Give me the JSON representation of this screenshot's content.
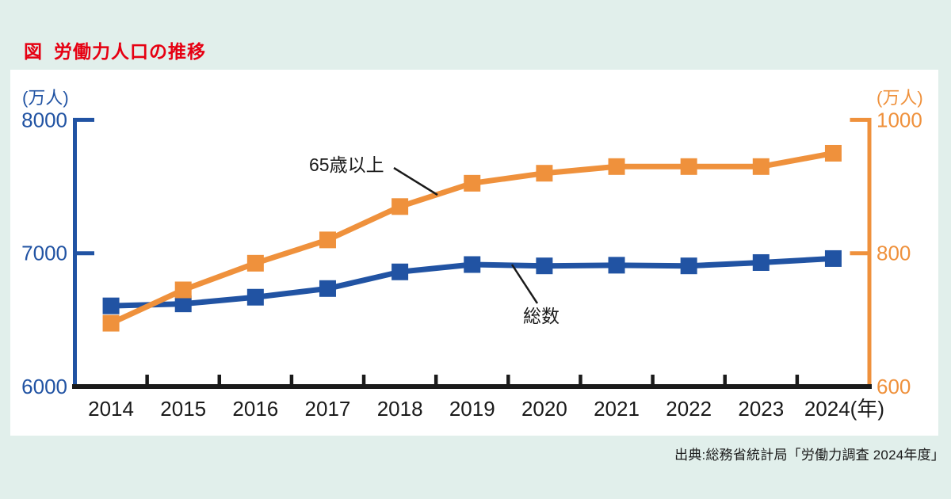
{
  "page": {
    "figure_label": "図",
    "title": "労働力人口の推移",
    "source": "出典:総務省統計局「労働力調査 2024年度」"
  },
  "colors": {
    "background": "#e1efeb",
    "panel": "#ffffff",
    "title": "#e60012",
    "total_blue": "#2153a3",
    "elderly_orange": "#ef913c",
    "axis_black": "#1a1a1a"
  },
  "chart_data": {
    "type": "line",
    "title": "労働力人口の推移",
    "categories": [
      "2014",
      "2015",
      "2016",
      "2017",
      "2018",
      "2019",
      "2020",
      "2021",
      "2022",
      "2023",
      "2024"
    ],
    "x_axis": {
      "unit_suffix": "(年)"
    },
    "left_axis": {
      "unit": "(万人)",
      "ticks": [
        8000,
        7000,
        6000
      ],
      "range": [
        6000,
        8000
      ],
      "color": "#2153a3"
    },
    "right_axis": {
      "unit": "(万人)",
      "ticks": [
        1000,
        800,
        600
      ],
      "range": [
        600,
        1000
      ],
      "color": "#ef913c"
    },
    "series": [
      {
        "name": "総数",
        "axis": "left",
        "color": "#2153a3",
        "marker": "square",
        "values": [
          6605,
          6620,
          6670,
          6735,
          6860,
          6915,
          6905,
          6910,
          6905,
          6930,
          6960
        ]
      },
      {
        "name": "65歳以上",
        "axis": "right",
        "color": "#ef913c",
        "marker": "square",
        "values": [
          695,
          745,
          785,
          820,
          870,
          905,
          920,
          930,
          930,
          930,
          950
        ]
      }
    ],
    "annotations": [
      {
        "text": "65歳以上",
        "series": "65歳以上"
      },
      {
        "text": "総数",
        "series": "総数"
      }
    ],
    "grid": false,
    "legend_position": "none"
  }
}
